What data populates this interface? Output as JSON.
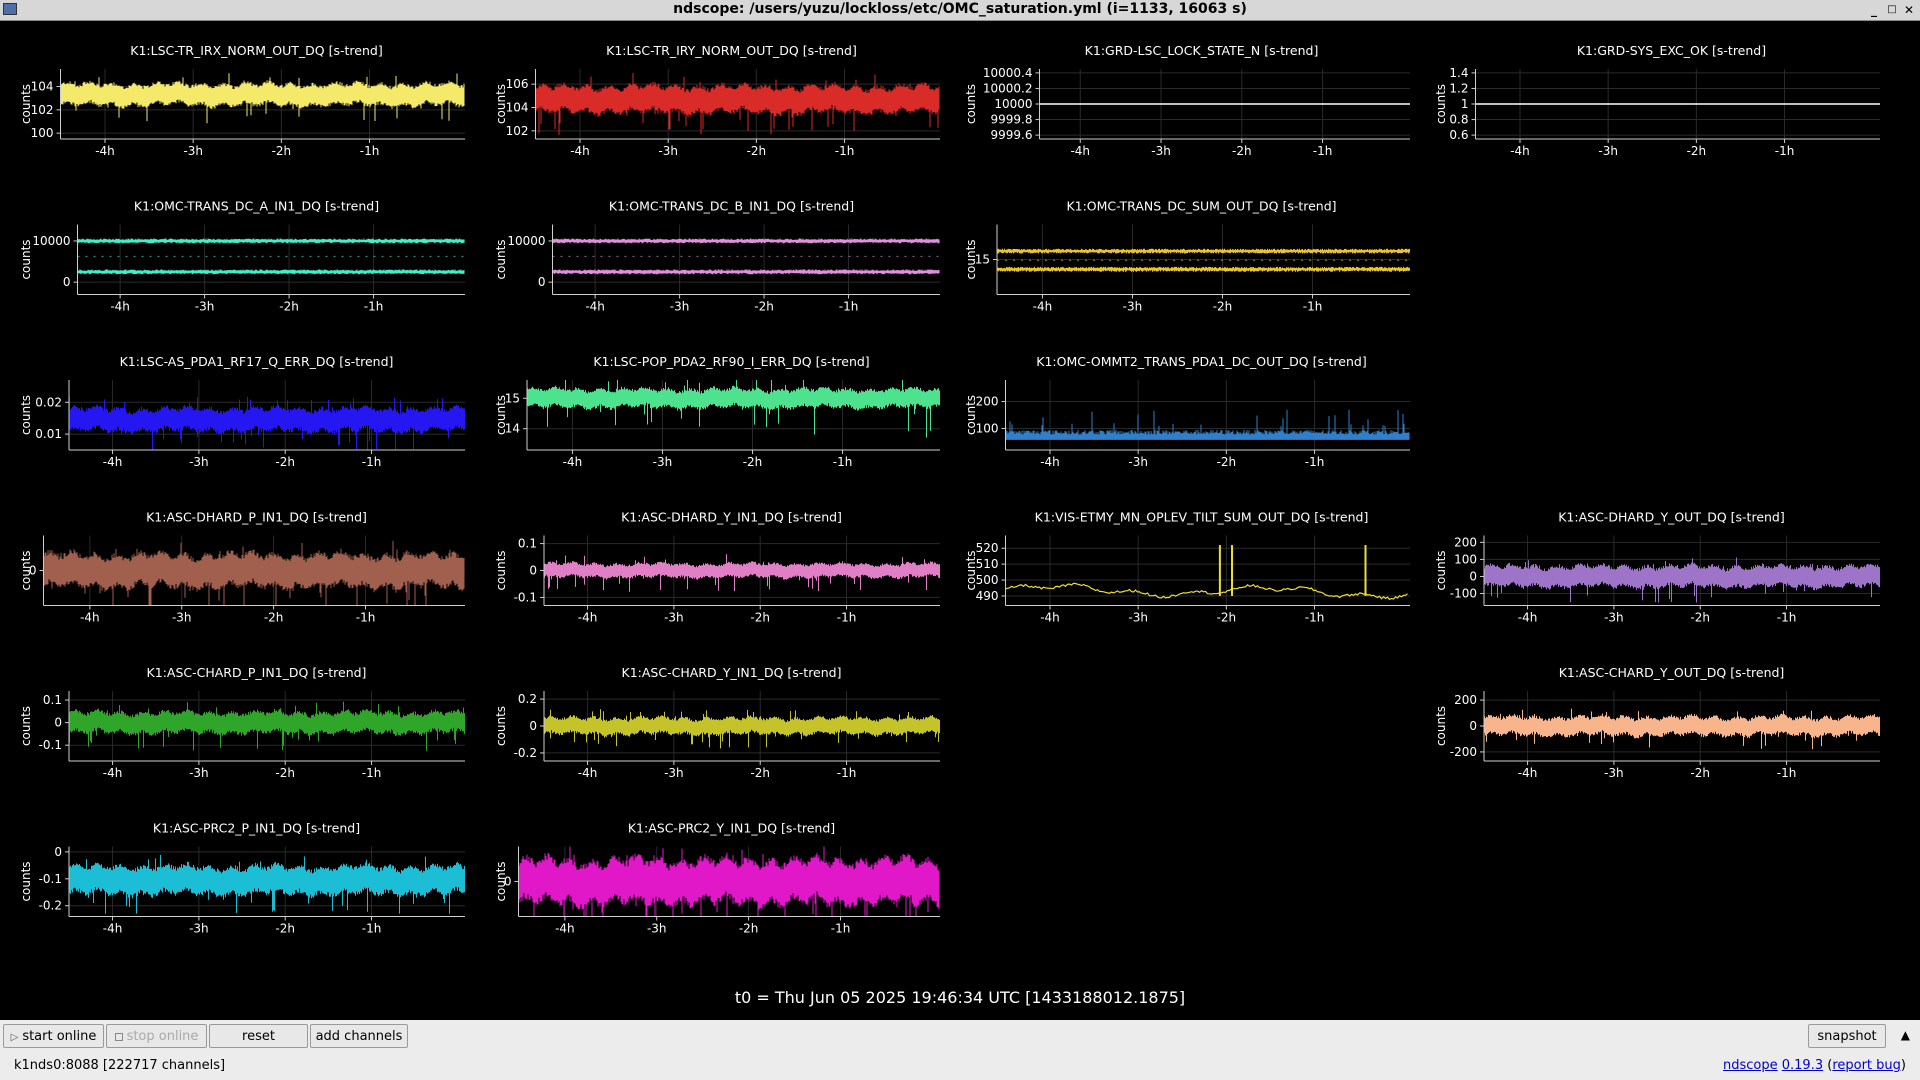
{
  "window": {
    "title": "ndscope: /users/yuzu/lockloss/etc/OMC_saturation.yml (i=1133, 16063 s)",
    "buttons": [
      "_",
      "□",
      "✕"
    ]
  },
  "plots": [
    {
      "row": 0,
      "col": 0,
      "title": "K1:LSC-TR_IRX_NORM_OUT_DQ [s-trend]",
      "ylabel": "counts",
      "yticks": [
        "104",
        "102",
        "100"
      ],
      "xticks": [
        "-4h",
        "-3h",
        "-2h",
        "-1h"
      ],
      "color": "#f5e96a",
      "kind": "band",
      "ylim": [
        99.5,
        105.5
      ],
      "center": 103.3,
      "amp": 0.9,
      "spikes": 1.8
    },
    {
      "row": 0,
      "col": 1,
      "title": "K1:LSC-TR_IRY_NORM_OUT_DQ [s-trend]",
      "ylabel": "counts",
      "yticks": [
        "106",
        "104",
        "102"
      ],
      "xticks": [
        "-4h",
        "-3h",
        "-2h",
        "-1h"
      ],
      "color": "#d92b28",
      "kind": "band",
      "ylim": [
        101.3,
        107.3
      ],
      "center": 104.7,
      "amp": 1.1,
      "spikes": 1.8
    },
    {
      "row": 0,
      "col": 2,
      "title": "K1:GRD-LSC_LOCK_STATE_N [s-trend]",
      "ylabel": "counts",
      "yticks": [
        "10000.4",
        "10000.2",
        "10000",
        "9999.8",
        "9999.6"
      ],
      "xticks": [
        "-4h",
        "-3h",
        "-2h",
        "-1h"
      ],
      "color": "#ffffff",
      "kind": "flat",
      "ylim": [
        9999.55,
        10000.45
      ],
      "center": 10000
    },
    {
      "row": 0,
      "col": 3,
      "title": "K1:GRD-SYS_EXC_OK [s-trend]",
      "ylabel": "counts",
      "yticks": [
        "1.4",
        "1.2",
        "1",
        "0.8",
        "0.6"
      ],
      "xticks": [
        "-4h",
        "-3h",
        "-2h",
        "-1h"
      ],
      "color": "#ffffff",
      "kind": "flat",
      "ylim": [
        0.55,
        1.45
      ],
      "center": 1
    },
    {
      "row": 1,
      "col": 0,
      "title": "K1:OMC-TRANS_DC_A_IN1_DQ [s-trend]",
      "ylabel": "counts",
      "yticks": [
        "10000",
        "0"
      ],
      "xticks": [
        "-4h",
        "-3h",
        "-2h",
        "-1h"
      ],
      "color": "#3ff0c8",
      "kind": "double",
      "ylim": [
        -3000,
        14000
      ],
      "upper": 10000,
      "lower": 2500,
      "amp": 600
    },
    {
      "row": 1,
      "col": 1,
      "title": "K1:OMC-TRANS_DC_B_IN1_DQ [s-trend]",
      "ylabel": "counts",
      "yticks": [
        "10000",
        "0"
      ],
      "xticks": [
        "-4h",
        "-3h",
        "-2h",
        "-1h"
      ],
      "color": "#e48ee2",
      "kind": "double",
      "ylim": [
        -3000,
        14000
      ],
      "upper": 10000,
      "lower": 2500,
      "amp": 600
    },
    {
      "row": 1,
      "col": 2,
      "title": "K1:OMC-TRANS_DC_SUM_OUT_DQ [s-trend]",
      "ylabel": "counts",
      "yticks": [
        "15"
      ],
      "xticks": [
        "-4h",
        "-3h",
        "-2h",
        "-1h"
      ],
      "color": "#e8c428",
      "kind": "double",
      "ylim": [
        10,
        20
      ],
      "upper": 16.2,
      "lower": 13.6,
      "amp": 0.35
    },
    {
      "row": 2,
      "col": 0,
      "title": "K1:LSC-AS_PDA1_RF17_Q_ERR_DQ [s-trend]",
      "ylabel": "counts",
      "yticks": [
        "0.02",
        "0.01"
      ],
      "xticks": [
        "-4h",
        "-3h",
        "-2h",
        "-1h"
      ],
      "color": "#2417f2",
      "kind": "band",
      "ylim": [
        0.005,
        0.027
      ],
      "center": 0.0145,
      "amp": 0.0035,
      "spikes": 1.8
    },
    {
      "row": 2,
      "col": 1,
      "title": "K1:LSC-POP_PDA2_RF90_I_ERR_DQ [s-trend]",
      "ylabel": "counts",
      "yticks": [
        "15",
        "14"
      ],
      "xticks": [
        "-4h",
        "-3h",
        "-2h",
        "-1h"
      ],
      "color": "#4de38e",
      "kind": "band",
      "ylim": [
        13.3,
        15.6
      ],
      "center": 15.0,
      "amp": 0.3,
      "spikes": 3.5
    },
    {
      "row": 2,
      "col": 2,
      "title": "K1:OMC-OMMT2_TRANS_PDA1_DC_OUT_DQ [s-trend]",
      "ylabel": "counts",
      "yticks": [
        "200",
        "100"
      ],
      "xticks": [
        "-4h",
        "-3h",
        "-2h",
        "-1h"
      ],
      "color": "#2f7fc9",
      "kind": "floor",
      "ylim": [
        20,
        280
      ],
      "center": 70,
      "amp": 25
    },
    {
      "row": 3,
      "col": 0,
      "title": "K1:ASC-DHARD_P_IN1_DQ [s-trend]",
      "ylabel": "counts",
      "yticks": [
        "0"
      ],
      "xticks": [
        "-4h",
        "-3h",
        "-2h",
        "-1h"
      ],
      "color": "#a0604d",
      "kind": "band",
      "ylim": [
        -1,
        1
      ],
      "center": 0,
      "amp": 0.45,
      "spikes": 1.5
    },
    {
      "row": 3,
      "col": 1,
      "title": "K1:ASC-DHARD_Y_IN1_DQ [s-trend]",
      "ylabel": "counts",
      "yticks": [
        "0.1",
        "0",
        "-0.1"
      ],
      "xticks": [
        "-4h",
        "-3h",
        "-2h",
        "-1h"
      ],
      "color": "#e07fc6",
      "kind": "band",
      "ylim": [
        -0.13,
        0.13
      ],
      "center": 0,
      "amp": 0.025,
      "spikes": 2.5
    },
    {
      "row": 3,
      "col": 2,
      "title": "K1:VIS-ETMY_MN_OPLEV_TILT_SUM_OUT_DQ [s-trend]",
      "ylabel": "counts",
      "yticks": [
        "520",
        "510",
        "500",
        "490"
      ],
      "xticks": [
        "-4h",
        "-3h",
        "-2h",
        "-1h"
      ],
      "color": "#f0df2a",
      "kind": "wave",
      "ylim": [
        484,
        528
      ],
      "center": 494,
      "amp": 3
    },
    {
      "row": 3,
      "col": 3,
      "title": "K1:ASC-DHARD_Y_OUT_DQ [s-trend]",
      "ylabel": "counts",
      "yticks": [
        "200",
        "100",
        "0",
        "-100"
      ],
      "xticks": [
        "-4h",
        "-3h",
        "-2h",
        "-1h"
      ],
      "color": "#9e74c8",
      "kind": "band",
      "ylim": [
        -170,
        240
      ],
      "center": 0,
      "amp": 60,
      "spikes": 1.6
    },
    {
      "row": 4,
      "col": 0,
      "title": "K1:ASC-CHARD_P_IN1_DQ [s-trend]",
      "ylabel": "counts",
      "yticks": [
        "0.1",
        "0",
        "-0.1"
      ],
      "xticks": [
        "-4h",
        "-3h",
        "-2h",
        "-1h"
      ],
      "color": "#2fa52a",
      "kind": "band",
      "ylim": [
        -0.17,
        0.14
      ],
      "center": 0,
      "amp": 0.045,
      "spikes": 1.8
    },
    {
      "row": 4,
      "col": 1,
      "title": "K1:ASC-CHARD_Y_IN1_DQ [s-trend]",
      "ylabel": "counts",
      "yticks": [
        "0.2",
        "0",
        "-0.2"
      ],
      "xticks": [
        "-4h",
        "-3h",
        "-2h",
        "-1h"
      ],
      "color": "#c4c42a",
      "kind": "band",
      "ylim": [
        -0.26,
        0.26
      ],
      "center": 0,
      "amp": 0.06,
      "spikes": 1.8
    },
    {
      "row": 4,
      "col": 3,
      "title": "K1:ASC-CHARD_Y_OUT_DQ [s-trend]",
      "ylabel": "counts",
      "yticks": [
        "200",
        "0",
        "-200"
      ],
      "xticks": [
        "-4h",
        "-3h",
        "-2h",
        "-1h"
      ],
      "color": "#f8b48a",
      "kind": "band",
      "ylim": [
        -270,
        270
      ],
      "center": 0,
      "amp": 70,
      "spikes": 1.6
    },
    {
      "row": 5,
      "col": 0,
      "title": "K1:ASC-PRC2_P_IN1_DQ [s-trend]",
      "ylabel": "counts",
      "yticks": [
        "0",
        "-0.1",
        "-0.2"
      ],
      "xticks": [
        "-4h",
        "-3h",
        "-2h",
        "-1h"
      ],
      "color": "#1bbed4",
      "kind": "band",
      "ylim": [
        -0.24,
        0.02
      ],
      "center": -0.105,
      "amp": 0.05,
      "spikes": 1.5
    },
    {
      "row": 5,
      "col": 1,
      "title": "K1:ASC-PRC2_Y_IN1_DQ [s-trend]",
      "ylabel": "counts",
      "yticks": [
        "0"
      ],
      "xticks": [
        "-4h",
        "-3h",
        "-2h",
        "-1h"
      ],
      "color": "#e018c8",
      "kind": "band",
      "ylim": [
        -1,
        1
      ],
      "center": 0,
      "amp": 0.6,
      "spikes": 1.2
    }
  ],
  "t0": "t0 = Thu Jun 05 2025 19:46:34 UTC [1433188012.1875]",
  "toolbar": {
    "start_online": "start online",
    "stop_online": "stop online",
    "reset": "reset",
    "add_channels": "add channels",
    "snapshot": "snapshot",
    "collapse_icon": "▲"
  },
  "status": {
    "server": "k1nds0:8088  [222717 channels]",
    "app": "ndscope",
    "version": "0.19.3",
    "report": "report bug"
  }
}
